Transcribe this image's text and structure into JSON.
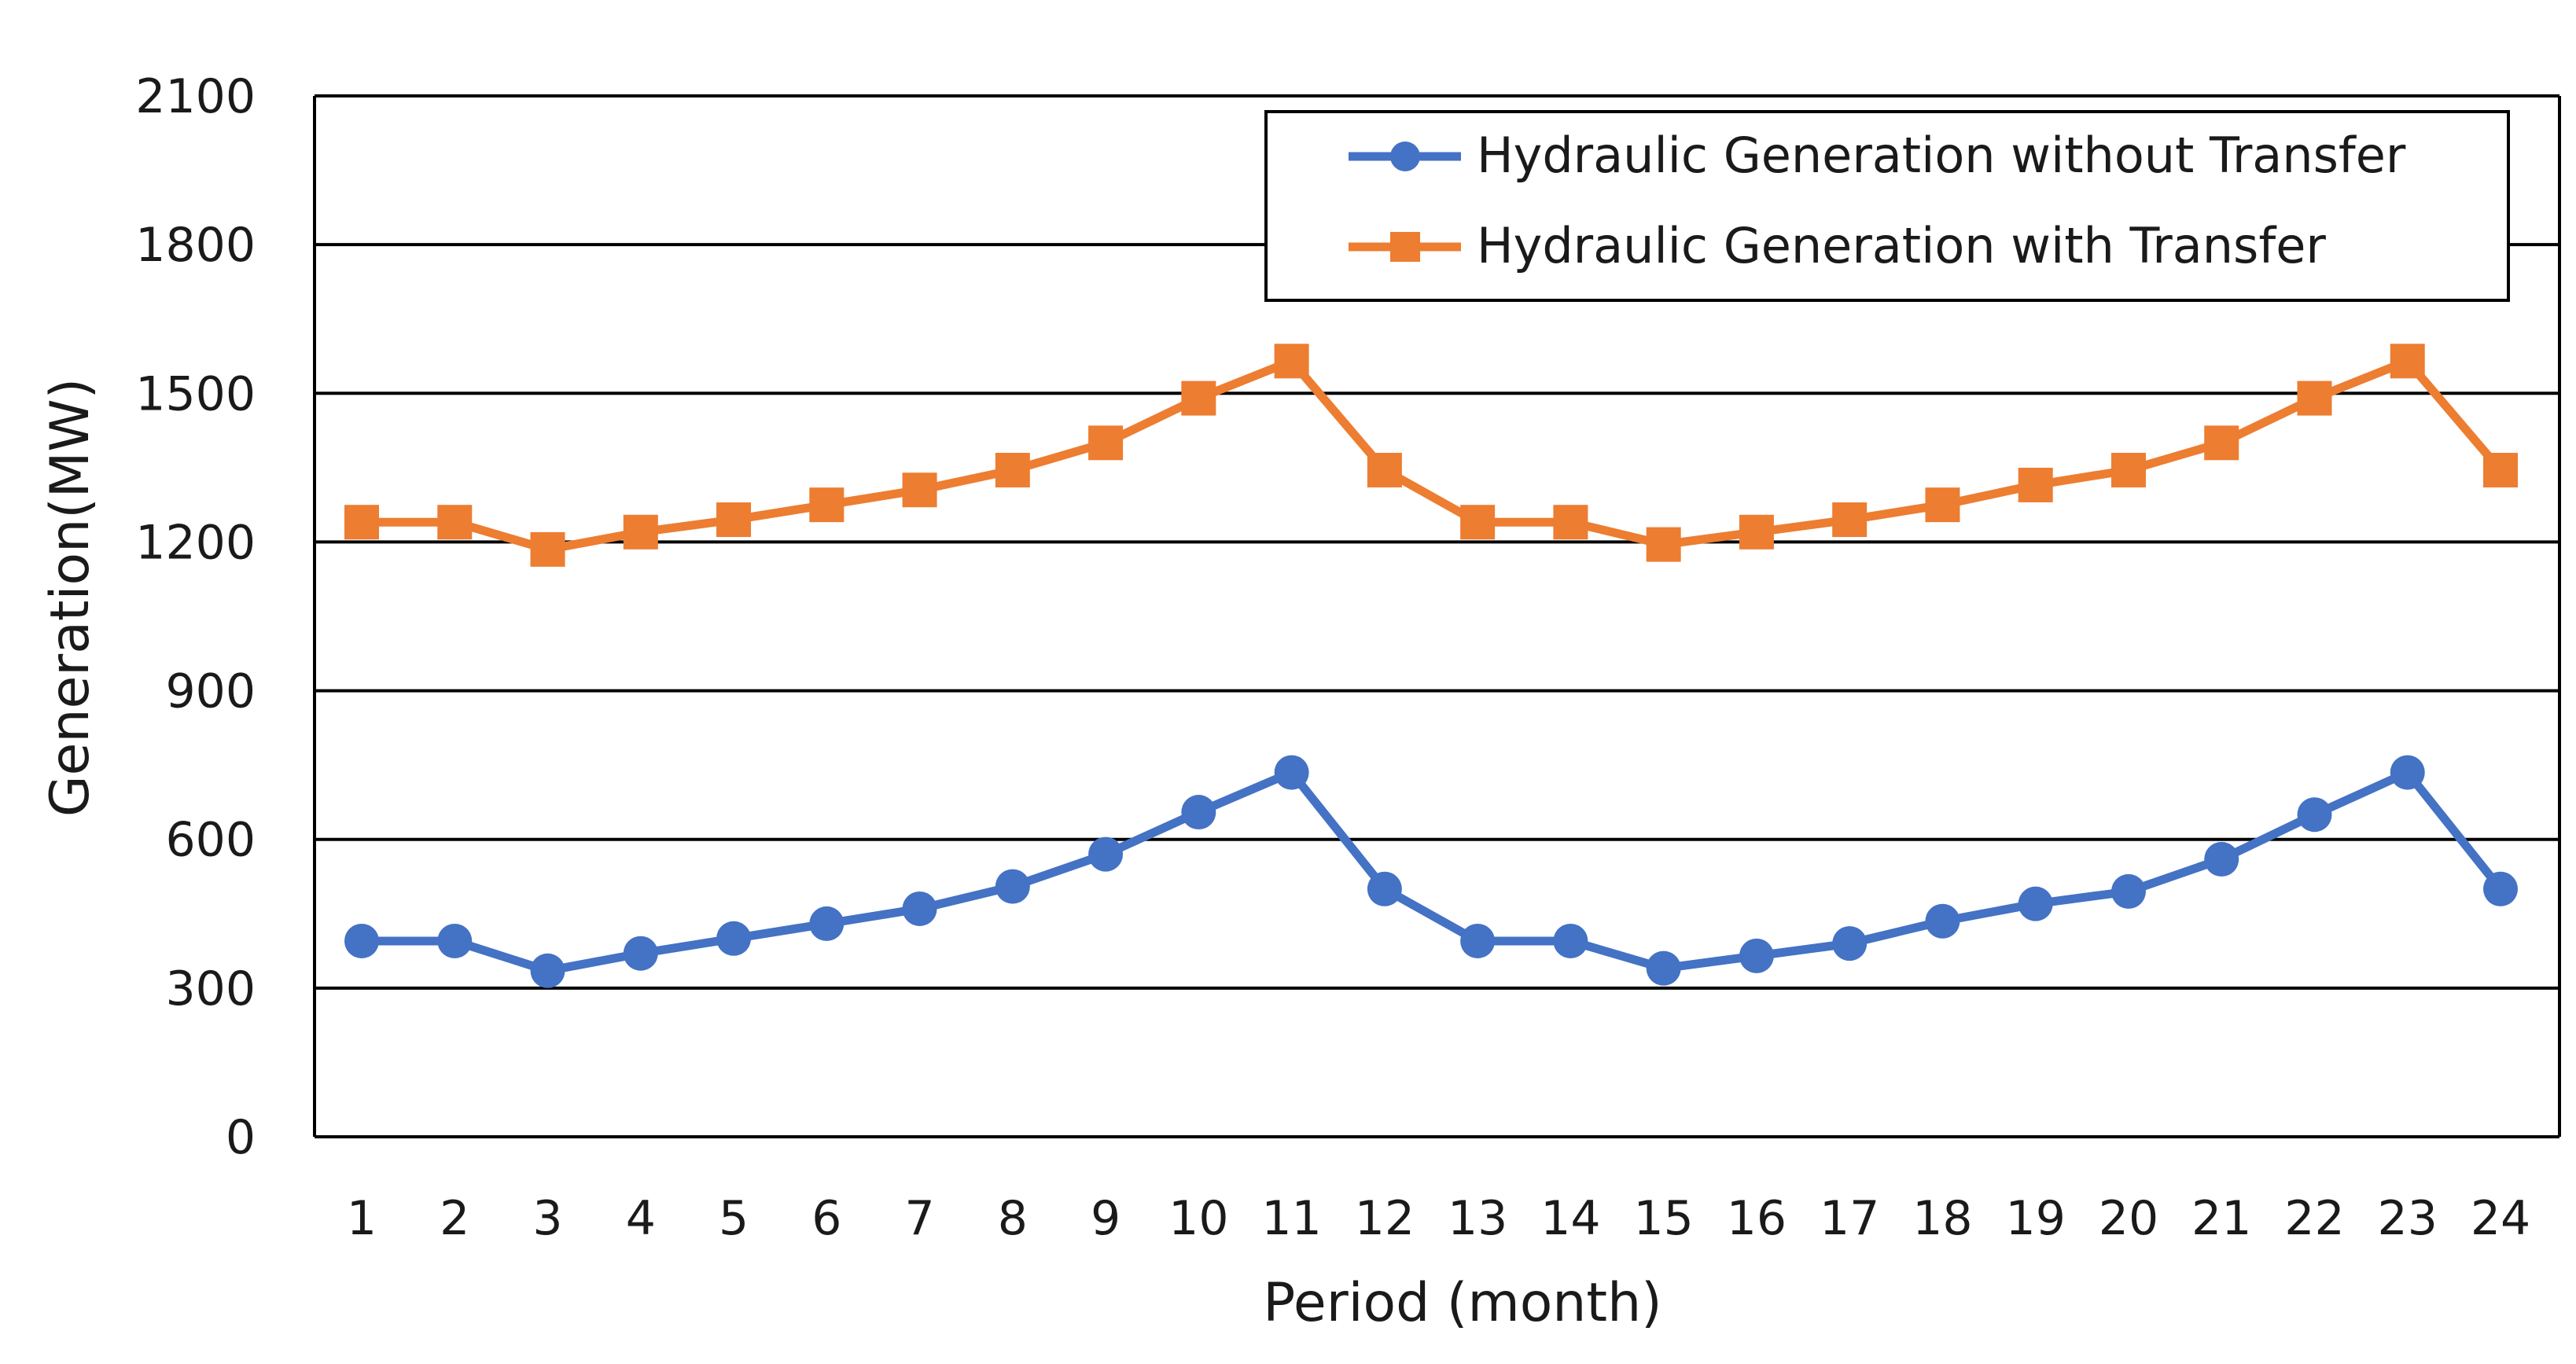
{
  "chart_data": {
    "type": "line",
    "title": "",
    "xlabel": "Period (month)",
    "ylabel": "Generation(MW)",
    "ylim": [
      0,
      2100
    ],
    "yticks": [
      0,
      300,
      600,
      900,
      1200,
      1500,
      1800,
      2100
    ],
    "grid": true,
    "legend_position": "top-right",
    "x": [
      "1",
      "2",
      "3",
      "4",
      "5",
      "6",
      "7",
      "8",
      "9",
      "10",
      "11",
      "12",
      "13",
      "14",
      "15",
      "16",
      "17",
      "18",
      "19",
      "20",
      "21",
      "22",
      "23",
      "24"
    ],
    "series": [
      {
        "name": "Hydraulic Generation without Transfer",
        "color": "#4472C4",
        "marker": "circle",
        "values": [
          395,
          395,
          335,
          370,
          400,
          430,
          460,
          505,
          570,
          655,
          735,
          500,
          395,
          395,
          340,
          365,
          390,
          435,
          470,
          495,
          560,
          650,
          735,
          500
        ]
      },
      {
        "name": "Hydraulic Generation with Transfer",
        "color": "#ED7D31",
        "marker": "square",
        "values": [
          1240,
          1240,
          1185,
          1220,
          1245,
          1275,
          1305,
          1345,
          1400,
          1490,
          1565,
          1345,
          1240,
          1240,
          1195,
          1220,
          1245,
          1275,
          1315,
          1345,
          1400,
          1490,
          1565,
          1345
        ]
      }
    ]
  }
}
